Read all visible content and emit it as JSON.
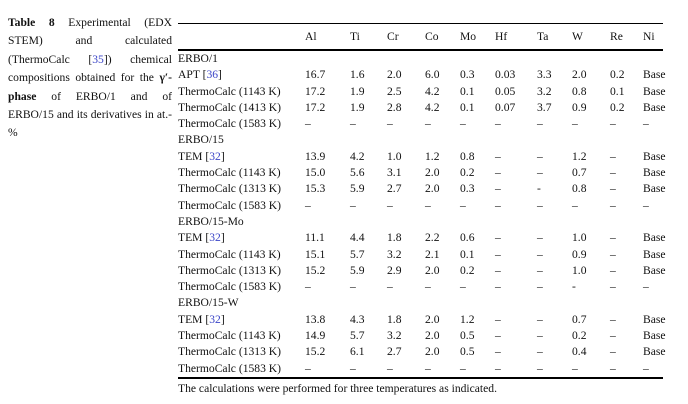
{
  "colors": {
    "citation_blue": "#3c46c8",
    "text": "#111111",
    "rule": "#000000"
  },
  "caption": {
    "segments": [
      {
        "text": "Table 8",
        "style": "bold"
      },
      {
        "text": " Experimental (EDX STEM) and calculated (ThermoCalc [",
        "style": "normal"
      },
      {
        "text": "35",
        "style": "cite"
      },
      {
        "text": "]) chemical compositions obtained for the ",
        "style": "normal"
      },
      {
        "text": "γ′-phase",
        "style": "bold"
      },
      {
        "text": " of ERBO/1 and of ERBO/15 and its derivatives in at.-%",
        "style": "normal"
      }
    ]
  },
  "table": {
    "columns": [
      "Al",
      "Ti",
      "Cr",
      "Co",
      "Mo",
      "Hf",
      "Ta",
      "W",
      "Re",
      "Ni"
    ],
    "sections": [
      {
        "name": "ERBO/1",
        "rows": [
          {
            "label": {
              "pre": "APT [",
              "cite": "36",
              "post": "]"
            },
            "values": [
              "16.7",
              "1.6",
              "2.0",
              "6.0",
              "0.3",
              "0.03",
              "3.3",
              "2.0",
              "0.2",
              "Base"
            ]
          },
          {
            "label": {
              "pre": "ThermoCalc (1143 K)"
            },
            "values": [
              "17.2",
              "1.9",
              "2.5",
              "4.2",
              "0.1",
              "0.05",
              "3.2",
              "0.8",
              "0.1",
              "Base"
            ]
          },
          {
            "label": {
              "pre": "ThermoCalc (1413 K)"
            },
            "values": [
              "17.2",
              "1.9",
              "2.8",
              "4.2",
              "0.1",
              "0.07",
              "3.7",
              "0.9",
              "0.2",
              "Base"
            ]
          },
          {
            "label": {
              "pre": "ThermoCalc (1583 K)"
            },
            "values": [
              "–",
              "–",
              "–",
              "–",
              "–",
              "–",
              "–",
              "–",
              "–",
              "–"
            ]
          }
        ]
      },
      {
        "name": "ERBO/15",
        "rows": [
          {
            "label": {
              "pre": "TEM [",
              "cite": "32",
              "post": "]"
            },
            "values": [
              "13.9",
              "4.2",
              "1.0",
              "1.2",
              "0.8",
              "–",
              "–",
              "1.2",
              "–",
              "Base"
            ]
          },
          {
            "label": {
              "pre": "ThermoCalc (1143 K)"
            },
            "values": [
              "15.0",
              "5.6",
              "3.1",
              "2.0",
              "0.2",
              "–",
              "–",
              "0.7",
              "–",
              "Base"
            ]
          },
          {
            "label": {
              "pre": "ThermoCalc (1313 K)"
            },
            "values": [
              "15.3",
              "5.9",
              "2.7",
              "2.0",
              "0.3",
              "–",
              "-",
              "0.8",
              "–",
              "Base"
            ]
          },
          {
            "label": {
              "pre": "ThermoCalc (1583 K)"
            },
            "values": [
              "–",
              "–",
              "–",
              "–",
              "–",
              "–",
              "–",
              "–",
              "–",
              "–"
            ]
          }
        ]
      },
      {
        "name": "ERBO/15-Mo",
        "rows": [
          {
            "label": {
              "pre": "TEM [",
              "cite": "32",
              "post": "]"
            },
            "values": [
              "11.1",
              "4.4",
              "1.8",
              "2.2",
              "0.6",
              "–",
              "–",
              "1.0",
              "–",
              "Base"
            ]
          },
          {
            "label": {
              "pre": "ThermoCalc (1143 K)"
            },
            "values": [
              "15.1",
              "5.7",
              "3.2",
              "2.1",
              "0.1",
              "–",
              "–",
              "0.9",
              "–",
              "Base"
            ]
          },
          {
            "label": {
              "pre": "ThermoCalc (1313 K)"
            },
            "values": [
              "15.2",
              "5.9",
              "2.9",
              "2.0",
              "0.2",
              "–",
              "–",
              "1.0",
              "–",
              "Base"
            ]
          },
          {
            "label": {
              "pre": "ThermoCalc (1583 K)"
            },
            "values": [
              "–",
              "–",
              "–",
              "–",
              "–",
              "–",
              "–",
              "-",
              "–",
              "–"
            ]
          }
        ]
      },
      {
        "name": "ERBO/15-W",
        "rows": [
          {
            "label": {
              "pre": "TEM [",
              "cite": "32",
              "post": "]"
            },
            "values": [
              "13.8",
              "4.3",
              "1.8",
              "2.0",
              "1.2",
              "–",
              "–",
              "0.7",
              "–",
              "Base"
            ]
          },
          {
            "label": {
              "pre": "ThermoCalc (1143 K)"
            },
            "values": [
              "14.9",
              "5.7",
              "3.2",
              "2.0",
              "0.5",
              "–",
              "–",
              "0.2",
              "–",
              "Base"
            ]
          },
          {
            "label": {
              "pre": "ThermoCalc (1313 K)"
            },
            "values": [
              "15.2",
              "6.1",
              "2.7",
              "2.0",
              "0.5",
              "–",
              "–",
              "0.4",
              "–",
              "Base"
            ]
          },
          {
            "label": {
              "pre": "ThermoCalc (1583 K)"
            },
            "values": [
              "–",
              "–",
              "–",
              "–",
              "–",
              "–",
              "–",
              "–",
              "–",
              "–"
            ]
          }
        ]
      }
    ]
  },
  "footnote": "The calculations were performed for three temperatures as indicated."
}
